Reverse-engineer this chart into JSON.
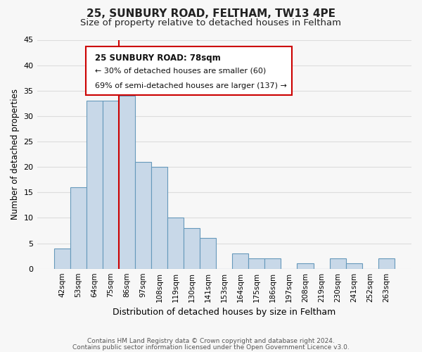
{
  "title1": "25, SUNBURY ROAD, FELTHAM, TW13 4PE",
  "title2": "Size of property relative to detached houses in Feltham",
  "xlabel": "Distribution of detached houses by size in Feltham",
  "ylabel": "Number of detached properties",
  "categories": [
    "42sqm",
    "53sqm",
    "64sqm",
    "75sqm",
    "86sqm",
    "97sqm",
    "108sqm",
    "119sqm",
    "130sqm",
    "141sqm",
    "153sqm",
    "164sqm",
    "175sqm",
    "186sqm",
    "197sqm",
    "208sqm",
    "219sqm",
    "230sqm",
    "241sqm",
    "252sqm",
    "263sqm"
  ],
  "values": [
    4,
    16,
    33,
    33,
    34,
    21,
    20,
    10,
    8,
    6,
    0,
    3,
    2,
    2,
    0,
    1,
    0,
    2,
    1,
    0,
    2
  ],
  "bar_color": "#c8d8e8",
  "bar_edge_color": "#6699bb",
  "vline_index": 3.5,
  "vline_color": "#cc0000",
  "annotation_title": "25 SUNBURY ROAD: 78sqm",
  "annotation_line1": "← 30% of detached houses are smaller (60)",
  "annotation_line2": "69% of semi-detached houses are larger (137) →",
  "annotation_box_edge": "#cc0000",
  "ylim": [
    0,
    45
  ],
  "yticks": [
    0,
    5,
    10,
    15,
    20,
    25,
    30,
    35,
    40,
    45
  ],
  "footer1": "Contains HM Land Registry data © Crown copyright and database right 2024.",
  "footer2": "Contains public sector information licensed under the Open Government Licence v3.0.",
  "bg_color": "#f7f7f7",
  "plot_bg_color": "#f7f7f7",
  "grid_color": "#dddddd",
  "title_fontsize": 11,
  "subtitle_fontsize": 9.5
}
